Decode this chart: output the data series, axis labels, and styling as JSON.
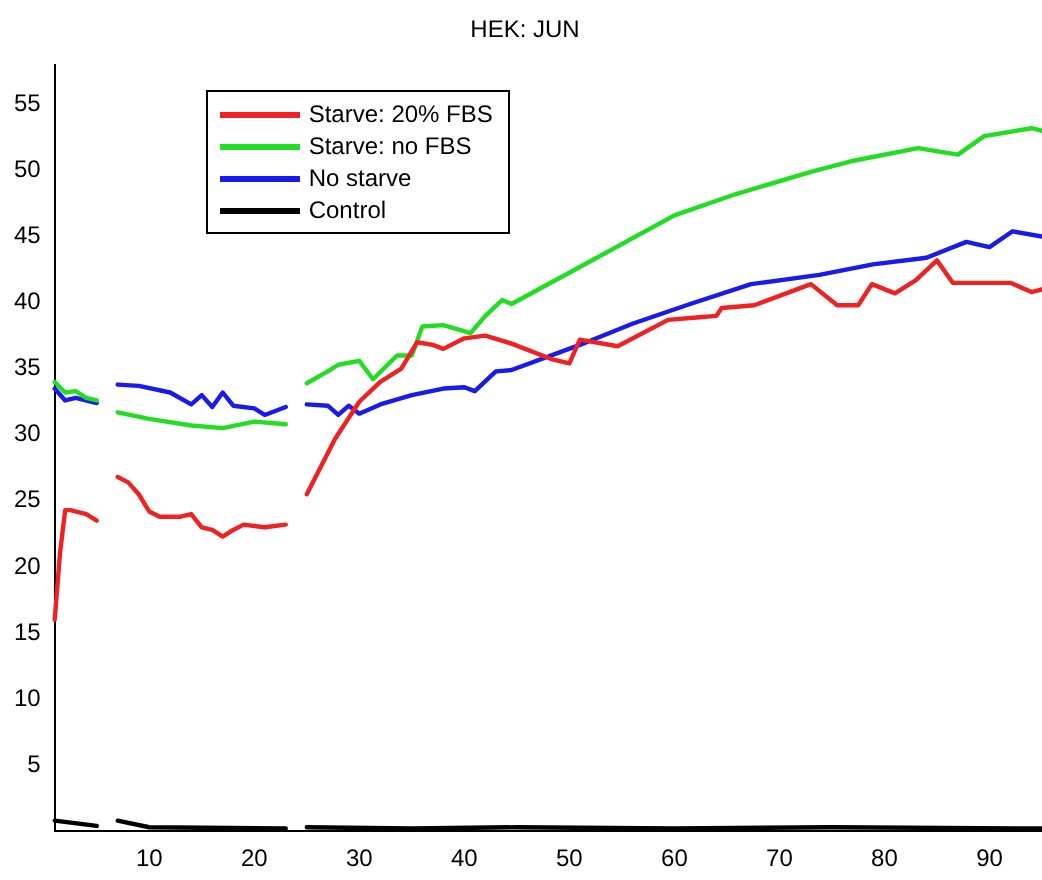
{
  "chart_data": {
    "type": "line",
    "title": "HEK: JUN",
    "xlim": [
      1,
      95
    ],
    "ylim": [
      0,
      58
    ],
    "xticks": [
      10,
      20,
      30,
      40,
      50,
      60,
      70,
      80,
      90
    ],
    "yticks": [
      5,
      10,
      15,
      20,
      25,
      30,
      35,
      40,
      45,
      50,
      55
    ],
    "grid": false,
    "legend": "top left",
    "marker": "none",
    "line_style": "solid",
    "series": [
      {
        "name": "Starve: 20% FBS",
        "color": "#ee2222",
        "x": [
          1,
          1.5,
          2,
          2.5,
          4,
          5,
          6,
          7,
          8,
          9,
          10,
          11,
          13,
          14,
          15,
          16,
          17,
          18,
          19,
          21,
          23,
          24,
          25,
          27.7,
          30,
          32,
          34,
          35.5,
          37,
          38,
          40,
          42,
          44.5,
          48.4,
          50,
          51,
          54.6,
          59.4,
          62.4,
          64,
          64.5,
          67.6,
          73,
          75.5,
          77.5,
          78.8,
          81,
          83,
          85,
          86.5,
          89.7,
          92,
          94,
          95
        ],
        "values": [
          16,
          21,
          24.3,
          24.3,
          24,
          23.5,
          null,
          26.8,
          26.4,
          25.5,
          24.2,
          23.8,
          23.8,
          24,
          23,
          22.8,
          22.3,
          22.8,
          23.2,
          23,
          23.2,
          null,
          25.5,
          29.7,
          32.5,
          34,
          35,
          37,
          36.8,
          36.5,
          37.3,
          37.5,
          36.9,
          35.7,
          35.4,
          37.2,
          36.7,
          38.7,
          38.9,
          39,
          39.6,
          39.8,
          41.4,
          39.8,
          39.8,
          41.4,
          40.7,
          41.7,
          43.2,
          41.5,
          41.5,
          41.5,
          40.8,
          41
        ]
      },
      {
        "name": "Starve: no FBS",
        "color": "#22dd22",
        "x": [
          1,
          2,
          3,
          4,
          5,
          6,
          7,
          10,
          14,
          17,
          20,
          23,
          24,
          25,
          27,
          28,
          30,
          31.3,
          33.6,
          35,
          36,
          38,
          40.6,
          42,
          43.6,
          44.5,
          51,
          60,
          65.8,
          73,
          76.8,
          83.2,
          87,
          89.5,
          94,
          95
        ],
        "values": [
          34,
          33.2,
          33.3,
          32.8,
          32.6,
          null,
          31.7,
          31.2,
          30.7,
          30.5,
          31,
          30.8,
          null,
          33.9,
          34.8,
          35.3,
          35.6,
          34.2,
          36,
          36,
          38.2,
          38.3,
          37.7,
          39,
          40.2,
          39.9,
          42.7,
          46.6,
          48.2,
          49.9,
          50.7,
          51.7,
          51.2,
          52.6,
          53.2,
          53
        ]
      },
      {
        "name": "No starve",
        "color": "#1a1aee",
        "x": [
          1,
          2,
          3,
          5,
          6,
          7,
          9,
          12,
          14,
          15,
          16,
          17,
          18,
          20,
          21,
          23,
          24,
          25,
          27,
          28,
          29,
          30,
          32,
          35,
          38,
          40,
          41,
          43,
          44.5,
          51,
          56,
          61.5,
          67.3,
          73.8,
          78.9,
          84,
          87.8,
          90,
          92.2,
          95
        ],
        "values": [
          33.5,
          32.6,
          32.8,
          32.4,
          null,
          33.8,
          33.7,
          33.2,
          32.3,
          33,
          32.1,
          33.2,
          32.2,
          32,
          31.5,
          32.1,
          null,
          32.3,
          32.2,
          31.5,
          32.2,
          31.6,
          32.3,
          33,
          33.5,
          33.6,
          33.3,
          34.8,
          34.9,
          36.8,
          38.4,
          39.9,
          41.4,
          42.1,
          42.9,
          43.4,
          44.6,
          44.2,
          45.4,
          45
        ]
      },
      {
        "name": "Control",
        "color": "#000000",
        "x": [
          1,
          5,
          6,
          7,
          10,
          23,
          24,
          25,
          35,
          45,
          60,
          75,
          95
        ],
        "values": [
          0.8,
          0.4,
          null,
          0.8,
          0.3,
          0.2,
          null,
          0.3,
          0.2,
          0.3,
          0.2,
          0.3,
          0.2
        ]
      }
    ]
  }
}
